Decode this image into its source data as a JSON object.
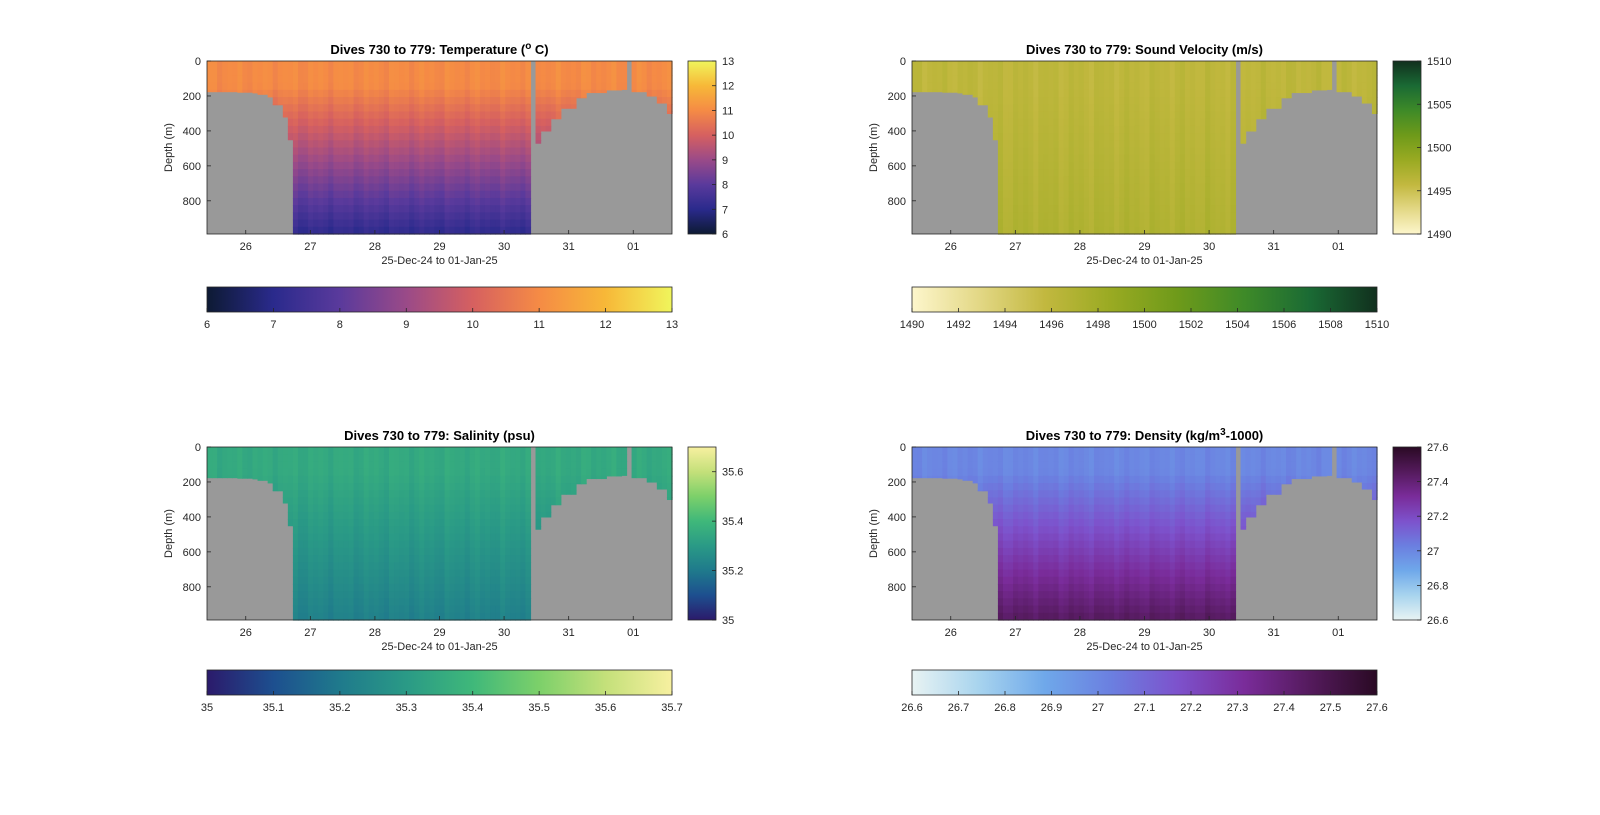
{
  "chart_data": [
    {
      "type": "heatmap",
      "title": "Dives 730 to 779: Temperature (",
      "title_unit": "o",
      "title_tail": " C)",
      "xlabel": "25-Dec-24 to 01-Jan-25",
      "ylabel": "Depth (m)",
      "x_tick_labels": [
        "26",
        "27",
        "28",
        "29",
        "30",
        "31",
        "01"
      ],
      "x_tick_days": [
        26,
        27,
        28,
        29,
        30,
        31,
        32
      ],
      "xlim": [
        25.4,
        32.6
      ],
      "y_tick_labels": [
        "0",
        "200",
        "400",
        "600",
        "800"
      ],
      "y_ticks": [
        0,
        200,
        400,
        600,
        800
      ],
      "ylim": [
        0,
        990
      ],
      "colorbar_vertical": {
        "ticks": [
          "6",
          "7",
          "8",
          "9",
          "10",
          "11",
          "12",
          "13"
        ],
        "values": [
          6,
          7,
          8,
          9,
          10,
          11,
          12,
          13
        ],
        "range": [
          6,
          13
        ]
      },
      "colorbar_horizontal": {
        "ticks": [
          "6",
          "7",
          "8",
          "9",
          "10",
          "11",
          "12",
          "13"
        ],
        "values": [
          6,
          7,
          8,
          9,
          10,
          11,
          12,
          13
        ],
        "range": [
          6,
          13
        ]
      },
      "colormap": [
        "#0d1a33",
        "#2a2a8c",
        "#5a3a9c",
        "#9a4a88",
        "#d66060",
        "#f58b45",
        "#f7b838",
        "#f0f55c"
      ],
      "surface_value": 11,
      "deep_value": 7.1,
      "no_data_color": "#999999"
    },
    {
      "type": "heatmap",
      "title": "Dives 730 to 779: Sound Velocity (m/s)",
      "xlabel": "25-Dec-24 to 01-Jan-25",
      "ylabel": "Depth (m)",
      "x_tick_labels": [
        "26",
        "27",
        "28",
        "29",
        "30",
        "31",
        "01"
      ],
      "x_tick_days": [
        26,
        27,
        28,
        29,
        30,
        31,
        32
      ],
      "xlim": [
        25.4,
        32.6
      ],
      "y_tick_labels": [
        "0",
        "200",
        "400",
        "600",
        "800"
      ],
      "y_ticks": [
        0,
        200,
        400,
        600,
        800
      ],
      "ylim": [
        0,
        990
      ],
      "colorbar_vertical": {
        "ticks": [
          "1490",
          "1495",
          "1500",
          "1505",
          "1510"
        ],
        "values": [
          1490,
          1495,
          1500,
          1505,
          1510
        ],
        "range": [
          1490,
          1510
        ]
      },
      "colorbar_horizontal": {
        "ticks": [
          "1490",
          "1492",
          "1494",
          "1496",
          "1498",
          "1500",
          "1502",
          "1504",
          "1506",
          "1508",
          "1510"
        ],
        "values": [
          1490,
          1492,
          1494,
          1496,
          1498,
          1500,
          1502,
          1504,
          1506,
          1508,
          1510
        ],
        "range": [
          1490,
          1510
        ]
      },
      "colormap": [
        "#fdf6cc",
        "#e3d886",
        "#c2b83f",
        "#99aa22",
        "#6e9a1a",
        "#3e8a28",
        "#1a6a34",
        "#11301e"
      ],
      "surface_value": 1496,
      "deep_value": 1497,
      "no_data_color": "#999999"
    },
    {
      "type": "heatmap",
      "title": "Dives 730 to 779: Salinity (psu)",
      "xlabel": "25-Dec-24 to 01-Jan-25",
      "ylabel": "Depth (m)",
      "x_tick_labels": [
        "26",
        "27",
        "28",
        "29",
        "30",
        "31",
        "01"
      ],
      "x_tick_days": [
        26,
        27,
        28,
        29,
        30,
        31,
        32
      ],
      "xlim": [
        25.4,
        32.6
      ],
      "y_tick_labels": [
        "0",
        "200",
        "400",
        "600",
        "800"
      ],
      "y_ticks": [
        0,
        200,
        400,
        600,
        800
      ],
      "ylim": [
        0,
        990
      ],
      "colorbar_vertical": {
        "ticks": [
          "35",
          "35.2",
          "35.4",
          "35.6"
        ],
        "values": [
          35,
          35.2,
          35.4,
          35.6
        ],
        "range": [
          35,
          35.7
        ]
      },
      "colorbar_horizontal": {
        "ticks": [
          "35",
          "35.1",
          "35.2",
          "35.3",
          "35.4",
          "35.5",
          "35.6",
          "35.7"
        ],
        "values": [
          35,
          35.1,
          35.2,
          35.3,
          35.4,
          35.5,
          35.6,
          35.7
        ],
        "range": [
          35,
          35.7
        ]
      },
      "colormap": [
        "#2b1a6b",
        "#1d4f8f",
        "#1f7a8c",
        "#2a9a86",
        "#3fb87a",
        "#7cd06a",
        "#c4e07a",
        "#f7f0a0"
      ],
      "surface_value": 35.35,
      "deep_value": 35.22,
      "no_data_color": "#999999"
    },
    {
      "type": "heatmap",
      "title": "Dives 730 to 779: Density (kg/m",
      "title_unit": "3",
      "title_tail": "-1000)",
      "xlabel": "25-Dec-24 to 01-Jan-25",
      "ylabel": "Depth (m)",
      "x_tick_labels": [
        "26",
        "27",
        "28",
        "29",
        "30",
        "31",
        "01"
      ],
      "x_tick_days": [
        26,
        27,
        28,
        29,
        30,
        31,
        32
      ],
      "xlim": [
        25.4,
        32.6
      ],
      "y_tick_labels": [
        "0",
        "200",
        "400",
        "600",
        "800"
      ],
      "y_ticks": [
        0,
        200,
        400,
        600,
        800
      ],
      "ylim": [
        0,
        990
      ],
      "colorbar_vertical": {
        "ticks": [
          "26.6",
          "26.8",
          "27",
          "27.2",
          "27.4",
          "27.6"
        ],
        "values": [
          26.6,
          26.8,
          27,
          27.2,
          27.4,
          27.6
        ],
        "range": [
          26.6,
          27.6
        ]
      },
      "colorbar_horizontal": {
        "ticks": [
          "26.6",
          "26.7",
          "26.8",
          "26.9",
          "27",
          "27.1",
          "27.2",
          "27.3",
          "27.4",
          "27.5",
          "27.6"
        ],
        "values": [
          26.6,
          26.7,
          26.8,
          26.9,
          27,
          27.1,
          27.2,
          27.3,
          27.4,
          27.5,
          27.6
        ],
        "range": [
          26.6,
          27.6
        ]
      },
      "colormap": [
        "#e8f3f3",
        "#a8d4ee",
        "#6fa8ea",
        "#6b7fe0",
        "#7d52cc",
        "#7a2c9a",
        "#541a5c",
        "#2a0a24"
      ],
      "surface_value": 27.0,
      "deep_value": 27.45,
      "no_data_color": "#999999"
    }
  ]
}
